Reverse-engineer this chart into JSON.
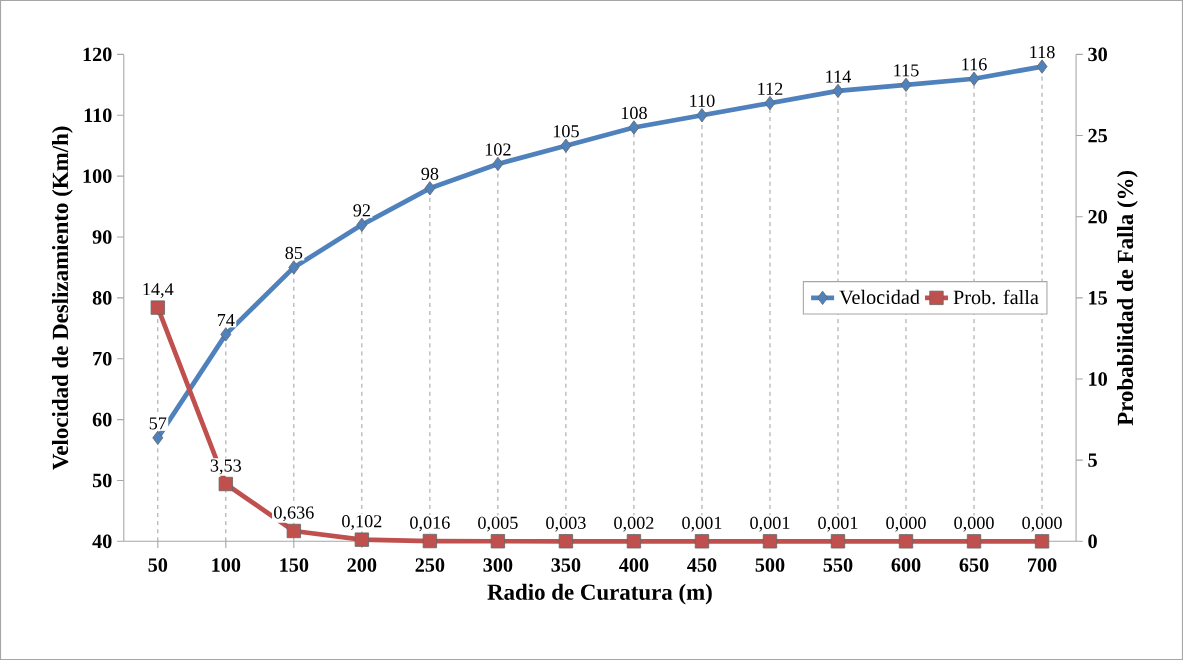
{
  "chart_data": {
    "type": "line",
    "xlabel": "Radio de Curatura (m)",
    "ylabel": "Velocidad de Deslizamiento (Km/h)",
    "y2label": "Probabilidad de Falla (%)",
    "categories": [
      "50",
      "100",
      "150",
      "200",
      "250",
      "300",
      "350",
      "400",
      "450",
      "500",
      "550",
      "600",
      "650",
      "700"
    ],
    "series": [
      {
        "name": "Velocidad",
        "color": "#4f81bd",
        "marker": "diamond",
        "values": [
          57,
          74,
          85,
          92,
          98,
          102,
          105,
          108,
          110,
          112,
          114,
          115,
          116,
          118
        ],
        "value_labels": [
          "57",
          "74",
          "85",
          "92",
          "98",
          "102",
          "105",
          "108",
          "110",
          "112",
          "114",
          "115",
          "116",
          "118"
        ]
      },
      {
        "name": "Prob. falla",
        "color": "#c0504d",
        "marker": "square",
        "axis": "y2",
        "values": [
          14.4,
          3.53,
          0.636,
          0.102,
          0.016,
          0.005,
          0.003,
          0.002,
          0.001,
          0.001,
          0.001,
          0.0,
          0.0,
          0.0
        ],
        "value_labels": [
          "14,4",
          "3,53",
          "0,636",
          "0,102",
          "0,016",
          "0,005",
          "0,003",
          "0,002",
          "0,001",
          "0,001",
          "0,001",
          "0,000",
          "0,000",
          "0,000"
        ]
      }
    ],
    "ylim": [
      40,
      120
    ],
    "yticks": [
      40,
      50,
      60,
      70,
      80,
      90,
      100,
      110,
      120
    ],
    "y2lim": [
      0,
      30
    ],
    "y2ticks": [
      0,
      5,
      10,
      15,
      20,
      25,
      30
    ],
    "grid": "x",
    "legend": "right"
  }
}
